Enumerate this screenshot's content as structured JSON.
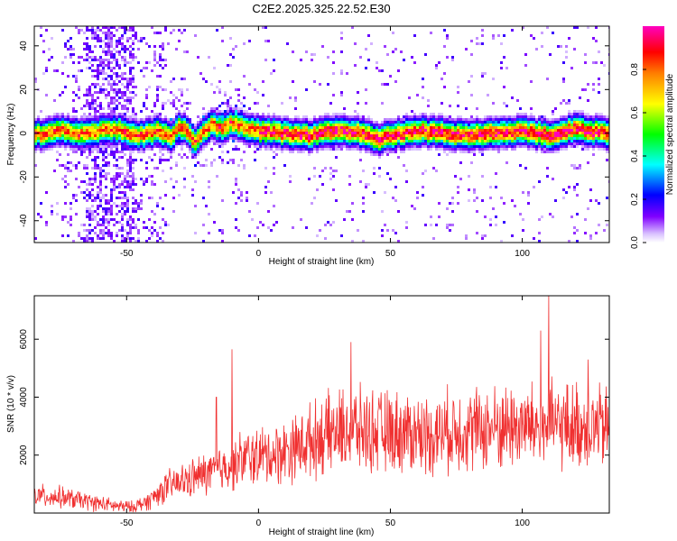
{
  "title": "C2E2.2025.325.22.52.E30",
  "chart_data": [
    {
      "type": "heatmap",
      "title": "C2E2.2025.325.22.52.E30",
      "xlabel": "Height of straight line (km)",
      "ylabel": "Frequency (Hz)",
      "xlim": [
        -85,
        133
      ],
      "ylim": [
        -50,
        49
      ],
      "xticks": [
        -50,
        0,
        50,
        100
      ],
      "yticks": [
        -40,
        -20,
        0,
        20,
        40
      ],
      "xtick_labels": [
        "-50",
        "0",
        "50",
        "100"
      ],
      "ytick_labels": [
        "-40",
        "-20",
        "0",
        "20",
        "40"
      ],
      "ridge": {
        "x": [
          -85,
          -75,
          -65,
          -55,
          -45,
          -38,
          -33,
          -30,
          -27,
          -24,
          -21,
          -18,
          -15,
          -10,
          -5,
          0,
          10,
          20,
          30,
          40,
          45,
          50,
          60,
          70,
          80,
          90,
          100,
          110,
          120,
          125,
          133
        ],
        "y": [
          -1,
          1,
          0,
          2,
          -1,
          1,
          -2,
          3,
          1,
          -4,
          0,
          4,
          2,
          5,
          3,
          1,
          0,
          -1,
          1,
          0,
          -3,
          -1,
          1,
          0,
          -1,
          0,
          1,
          -1,
          2,
          1,
          0
        ]
      },
      "colorbar": {
        "label": "Normalized spectral amplitude",
        "range": [
          0,
          1
        ],
        "ticks": [
          0.0,
          0.2,
          0.4,
          0.6,
          0.8
        ],
        "tick_labels": [
          "0.0",
          "0.2",
          "0.4",
          "0.6",
          "0.8"
        ],
        "colormap": [
          "#ffffff",
          "#c8a0ff",
          "#8000ff",
          "#0000ff",
          "#00ffff",
          "#00ff00",
          "#ffff00",
          "#ff8000",
          "#ff0000",
          "#ff00c0"
        ]
      }
    },
    {
      "type": "line",
      "xlabel": "Height of straight line (km)",
      "ylabel": "SNR (10 * v/v)",
      "xlim": [
        -85,
        133
      ],
      "ylim": [
        0,
        7500
      ],
      "xticks": [
        -50,
        0,
        50,
        100
      ],
      "yticks": [
        2000,
        4000,
        6000
      ],
      "xtick_labels": [
        "-50",
        "0",
        "50",
        "100"
      ],
      "ytick_labels": [
        "2000",
        "4000",
        "6000"
      ],
      "color": "#f03030",
      "trend": {
        "x": [
          -85,
          -75,
          -65,
          -55,
          -48,
          -42,
          -35,
          -25,
          -15,
          -5,
          5,
          15,
          25,
          35,
          45,
          55,
          65,
          75,
          85,
          95,
          105,
          115,
          125,
          133
        ],
        "y": [
          600,
          550,
          400,
          250,
          200,
          400,
          900,
          1200,
          1500,
          1900,
          2000,
          2300,
          2700,
          2900,
          2800,
          2800,
          2700,
          2900,
          2900,
          3000,
          3000,
          3000,
          3000,
          2900
        ]
      },
      "peaks": [
        {
          "x": -10,
          "y": 5650
        },
        {
          "x": 35,
          "y": 5900
        },
        {
          "x": 110,
          "y": 7500
        },
        {
          "x": 107,
          "y": 6300
        },
        {
          "x": 125,
          "y": 5300
        },
        {
          "x": -16,
          "y": 4000
        }
      ]
    }
  ]
}
